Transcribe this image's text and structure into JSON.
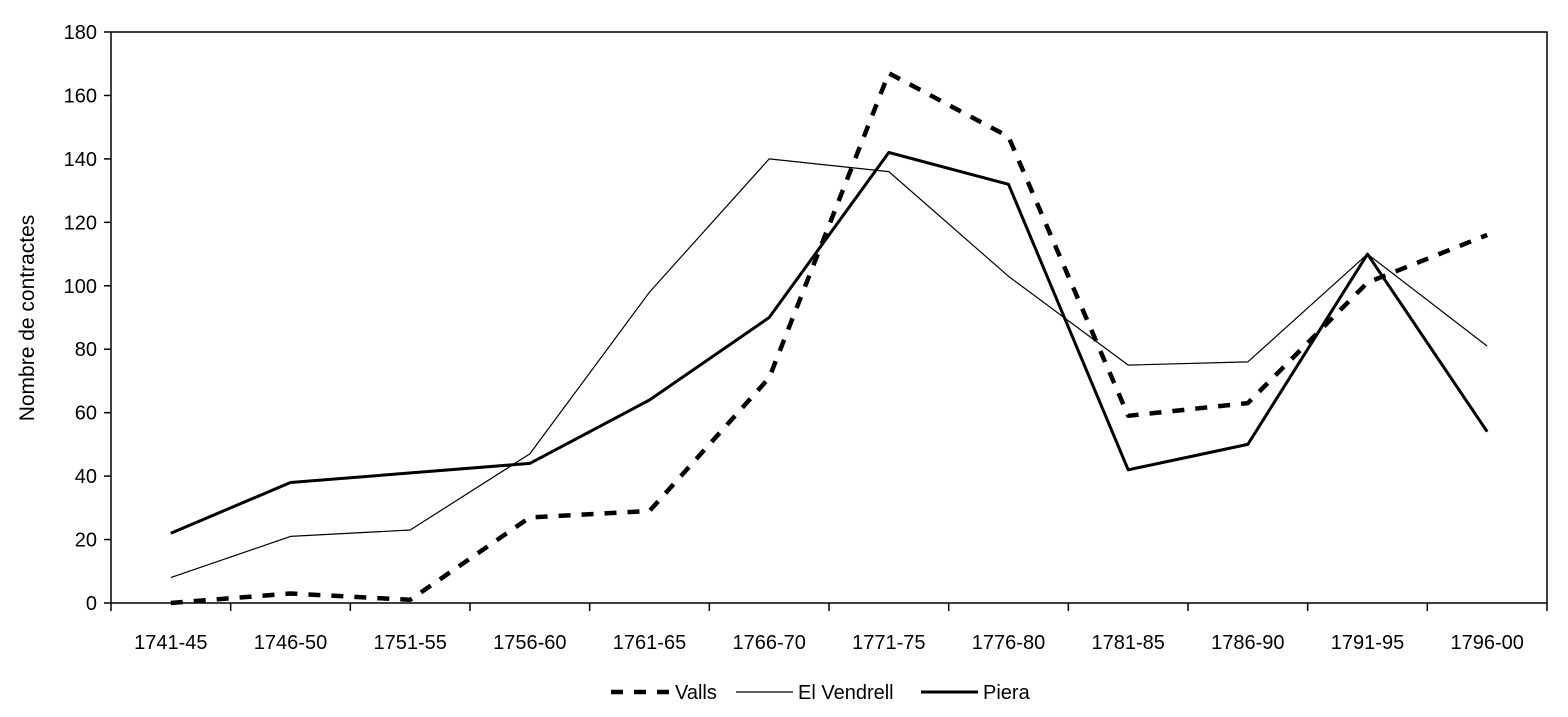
{
  "chart_data": {
    "type": "line",
    "ylabel": "Nombre de contractes",
    "xlabel": "",
    "categories": [
      "1741-45",
      "1746-50",
      "1751-55",
      "1756-60",
      "1761-65",
      "1766-70",
      "1771-75",
      "1776-80",
      "1781-85",
      "1786-90",
      "1791-95",
      "1796-00"
    ],
    "ylim": [
      0,
      180
    ],
    "yticks": [
      0,
      20,
      40,
      60,
      80,
      100,
      120,
      140,
      160,
      180
    ],
    "grid": false,
    "legend_position": "bottom",
    "series": [
      {
        "name": "Valls",
        "style": "dashed-thick",
        "color": "#000000",
        "values": [
          0,
          3,
          1,
          27,
          29,
          71,
          167,
          147,
          59,
          63,
          101,
          116
        ]
      },
      {
        "name": "El Vendrell",
        "style": "thin",
        "color": "#000000",
        "values": [
          8,
          21,
          23,
          47,
          98,
          140,
          136,
          103,
          75,
          76,
          110,
          81
        ]
      },
      {
        "name": "Piera",
        "style": "thick",
        "color": "#000000",
        "values": [
          22,
          38,
          null,
          44,
          64,
          90,
          142,
          132,
          42,
          50,
          110,
          54
        ]
      }
    ]
  }
}
